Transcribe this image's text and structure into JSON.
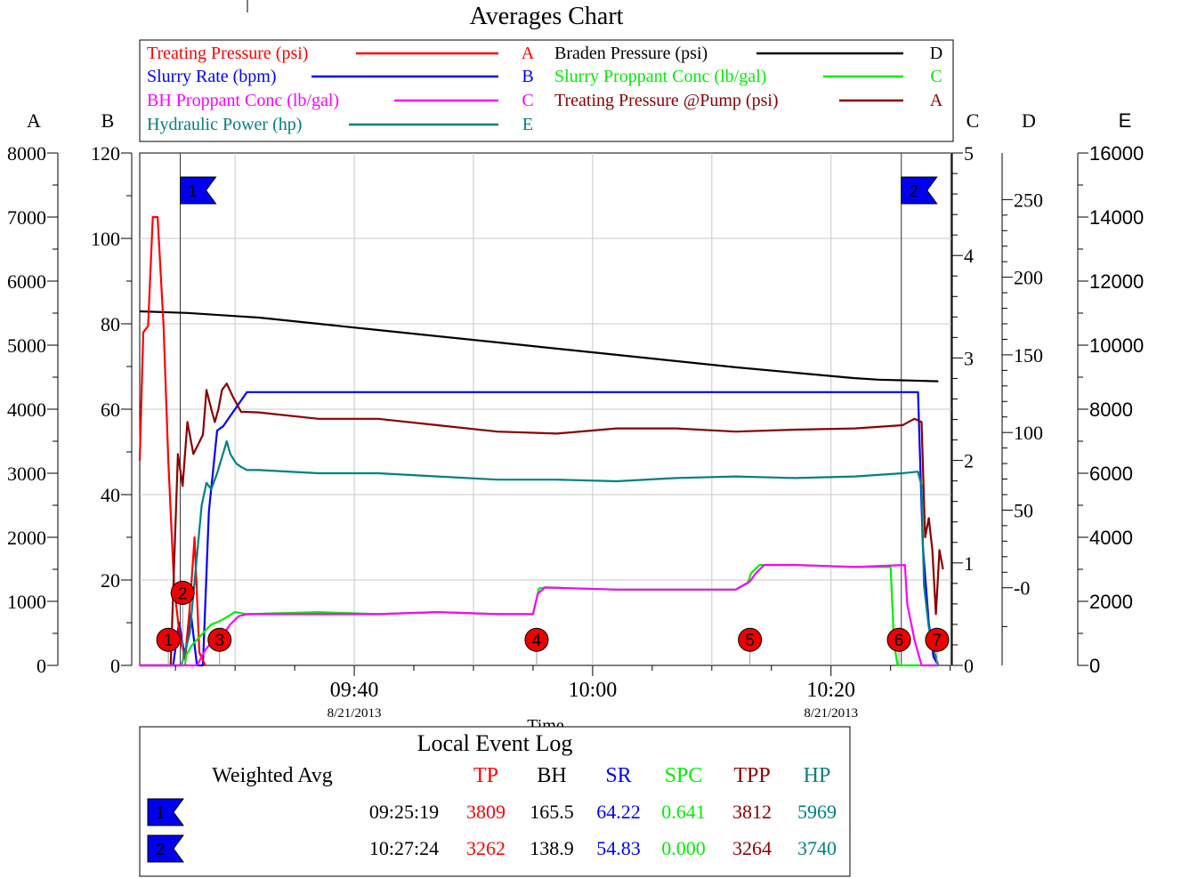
{
  "chart_data": {
    "type": "line",
    "title": "Averages Chart",
    "xlabel": "Time",
    "x_ticks": [
      {
        "time": "09:40",
        "date": "8/21/2013"
      },
      {
        "time": "10:00",
        "date": ""
      },
      {
        "time": "10:20",
        "date": "8/21/2013"
      }
    ],
    "axes": [
      {
        "id": "A",
        "label": "A",
        "ylim": [
          0,
          8000
        ],
        "ticks": [
          "0",
          "1000",
          "2000",
          "3000",
          "4000",
          "5000",
          "6000",
          "7000",
          "8000"
        ]
      },
      {
        "id": "B",
        "label": "B",
        "ylim": [
          0,
          120
        ],
        "ticks": [
          "0",
          "20",
          "40",
          "60",
          "80",
          "100",
          "120"
        ]
      },
      {
        "id": "C",
        "label": "C",
        "ylim": [
          0,
          5
        ],
        "ticks": [
          "0",
          "1",
          "2",
          "3",
          "4",
          "5"
        ]
      },
      {
        "id": "D",
        "label": "D",
        "ylim": [
          -50,
          280
        ],
        "ticks": [
          "-0",
          "50",
          "100",
          "150",
          "200",
          "250"
        ]
      },
      {
        "id": "E",
        "label": "E",
        "ylim": [
          0,
          16000
        ],
        "ticks": [
          "0",
          "2000",
          "4000",
          "6000",
          "8000",
          "10000",
          "12000",
          "14000",
          "16000"
        ]
      }
    ],
    "legend": [
      {
        "name": "Treating Pressure (psi)",
        "axis": "A",
        "color": "#ff0000"
      },
      {
        "name": "Braden Pressure (psi)",
        "axis": "D",
        "color": "#000000"
      },
      {
        "name": "Slurry Rate (bpm)",
        "axis": "B",
        "color": "#0000ff"
      },
      {
        "name": "Slurry Proppant Conc (lb/gal)",
        "axis": "C",
        "color": "#00ee00"
      },
      {
        "name": "BH Proppant Conc (lb/gal)",
        "axis": "C",
        "color": "#ff00ff"
      },
      {
        "name": "Treating Pressure @Pump (psi)",
        "axis": "A",
        "color": "#8b0000"
      },
      {
        "name": "Hydraulic Power (hp)",
        "axis": "E",
        "color": "#008080"
      }
    ],
    "series": [
      {
        "name": "Braden Pressure (psi)",
        "axis": "D",
        "color": "#000000",
        "x": [
          0,
          4,
          8,
          10,
          20,
          30,
          40,
          50,
          60,
          62,
          67
        ],
        "y": [
          178,
          177,
          175,
          174,
          166,
          158,
          150,
          142,
          135,
          134,
          133
        ]
      },
      {
        "name": "Slurry Rate (bpm)",
        "axis": "B",
        "color": "#0000ff",
        "x": [
          0,
          2.8,
          3.3,
          3.8,
          4.3,
          4.8,
          5.3,
          5.8,
          6.5,
          7,
          9,
          20,
          30,
          40,
          50,
          60,
          65.3,
          65.7,
          66.2,
          66.6,
          67
        ],
        "y": [
          0,
          0,
          10,
          2,
          12,
          0,
          0,
          36,
          55,
          56,
          64,
          64,
          64,
          64,
          64,
          64,
          64,
          28,
          10,
          2,
          0
        ]
      },
      {
        "name": "Treating Pressure (psi)",
        "axis": "A",
        "color": "#ff0000",
        "x": [
          0,
          0.3,
          0.7,
          1.1,
          1.5,
          2,
          2.4,
          2.9,
          3.4,
          3.8,
          4.2,
          4.6,
          5,
          5.5
        ],
        "y": [
          3200,
          5200,
          5300,
          7000,
          7000,
          5300,
          3200,
          1200,
          400,
          100,
          900,
          2000,
          200,
          0
        ]
      },
      {
        "name": "Treating Pressure @Pump (psi)",
        "axis": "A",
        "color": "#8b0000",
        "x": [
          2.6,
          3.2,
          3.6,
          4,
          4.5,
          5.3,
          5.6,
          6,
          6.3,
          6.6,
          6.9,
          7.3,
          7.8,
          8.5,
          10,
          15,
          20,
          25,
          30,
          35,
          40,
          45,
          50,
          55,
          60,
          64,
          65,
          65.6,
          65.9,
          66.2,
          66.5,
          66.8,
          67.1,
          67.4
        ],
        "y": [
          0,
          3300,
          2800,
          3800,
          3300,
          3600,
          4300,
          4000,
          3800,
          4000,
          4300,
          4400,
          4200,
          3960,
          3950,
          3850,
          3850,
          3750,
          3650,
          3620,
          3700,
          3700,
          3650,
          3680,
          3700,
          3750,
          3850,
          3800,
          2000,
          2300,
          1800,
          800,
          1800,
          1500
        ]
      },
      {
        "name": "Hydraulic Power (hp)",
        "axis": "E",
        "color": "#008080",
        "x": [
          0,
          3.5,
          4.2,
          4.7,
          5.2,
          5.6,
          6,
          6.5,
          7.3,
          7.6,
          8.1,
          8.5,
          9,
          10,
          15,
          20,
          25,
          30,
          35,
          40,
          45,
          50,
          55,
          60,
          64,
          65.3,
          65.6,
          65.8,
          66.2,
          66.6,
          67
        ],
        "y": [
          0,
          0,
          1000,
          3000,
          5000,
          5700,
          5500,
          6000,
          7000,
          6600,
          6300,
          6200,
          6100,
          6100,
          6000,
          6000,
          5900,
          5800,
          5800,
          5750,
          5850,
          5900,
          5850,
          5900,
          6000,
          6050,
          5600,
          2500,
          1200,
          500,
          0
        ]
      },
      {
        "name": "Slurry Proppant Conc (lb/gal)",
        "axis": "C",
        "color": "#00ee00",
        "x": [
          0,
          3.8,
          3.9,
          4.4,
          5.2,
          6,
          6.5,
          7,
          8,
          9,
          15,
          20,
          25,
          30,
          33,
          33.5,
          34,
          40,
          45,
          50,
          51,
          51.3,
          52,
          55,
          60,
          63,
          63.3,
          63.6,
          64,
          67
        ],
        "y": [
          0,
          0,
          0.1,
          0.2,
          0.3,
          0.4,
          0.42,
          0.45,
          0.52,
          0.5,
          0.52,
          0.5,
          0.52,
          0.5,
          0.5,
          0.75,
          0.76,
          0.74,
          0.74,
          0.74,
          0.8,
          0.9,
          0.98,
          0.98,
          0.96,
          0.96,
          0.2,
          0,
          0,
          0
        ]
      },
      {
        "name": "BH Proppant Conc (lb/gal)",
        "axis": "C",
        "color": "#ff00ff",
        "x": [
          0,
          4.8,
          5.5,
          6.2,
          7,
          7.6,
          8.3,
          9,
          15,
          20,
          25,
          30,
          33,
          33.4,
          34,
          40,
          45,
          50,
          51.2,
          51.7,
          52.4,
          55,
          60,
          64.2,
          64.4,
          65,
          65.6,
          67
        ],
        "y": [
          0,
          0,
          0.15,
          0.25,
          0.3,
          0.4,
          0.48,
          0.5,
          0.5,
          0.5,
          0.52,
          0.5,
          0.5,
          0.7,
          0.76,
          0.74,
          0.74,
          0.74,
          0.82,
          0.9,
          0.98,
          0.98,
          0.96,
          0.98,
          0.6,
          0.25,
          0,
          0
        ]
      }
    ],
    "flags": [
      {
        "label": "1",
        "x": 3.4
      },
      {
        "label": "2",
        "x": 63.9
      }
    ],
    "events": [
      {
        "label": "1",
        "x": 2.4,
        "y_axis_B": 6
      },
      {
        "label": "2",
        "x": 3.6,
        "y_axis_B": 17
      },
      {
        "label": "3",
        "x": 6.7,
        "y_axis_B": 6
      },
      {
        "label": "4",
        "x": 33.3,
        "y_axis_B": 6
      },
      {
        "label": "5",
        "x": 51.2,
        "y_axis_B": 6
      },
      {
        "label": "6",
        "x": 63.7,
        "y_axis_B": 6
      },
      {
        "label": "7",
        "x": 66.9,
        "y_axis_B": 6
      }
    ],
    "grid": true
  },
  "event_log": {
    "title": "Local Event Log",
    "header": [
      "Weighted Avg",
      "TP",
      "BH",
      "SR",
      "SPC",
      "TPP",
      "HP"
    ],
    "header_colors": [
      "#000000",
      "#ff0000",
      "#000000",
      "#0000ff",
      "#00ee00",
      "#8b0000",
      "#008080"
    ],
    "rows": [
      {
        "flag": "1",
        "time": "09:25:19",
        "values": [
          "3809",
          "165.5",
          "64.22",
          "0.641",
          "3812",
          "5969"
        ]
      },
      {
        "flag": "2",
        "time": "10:27:24",
        "values": [
          "3262",
          "138.9",
          "54.83",
          "0.000",
          "3264",
          "3740"
        ]
      }
    ]
  }
}
